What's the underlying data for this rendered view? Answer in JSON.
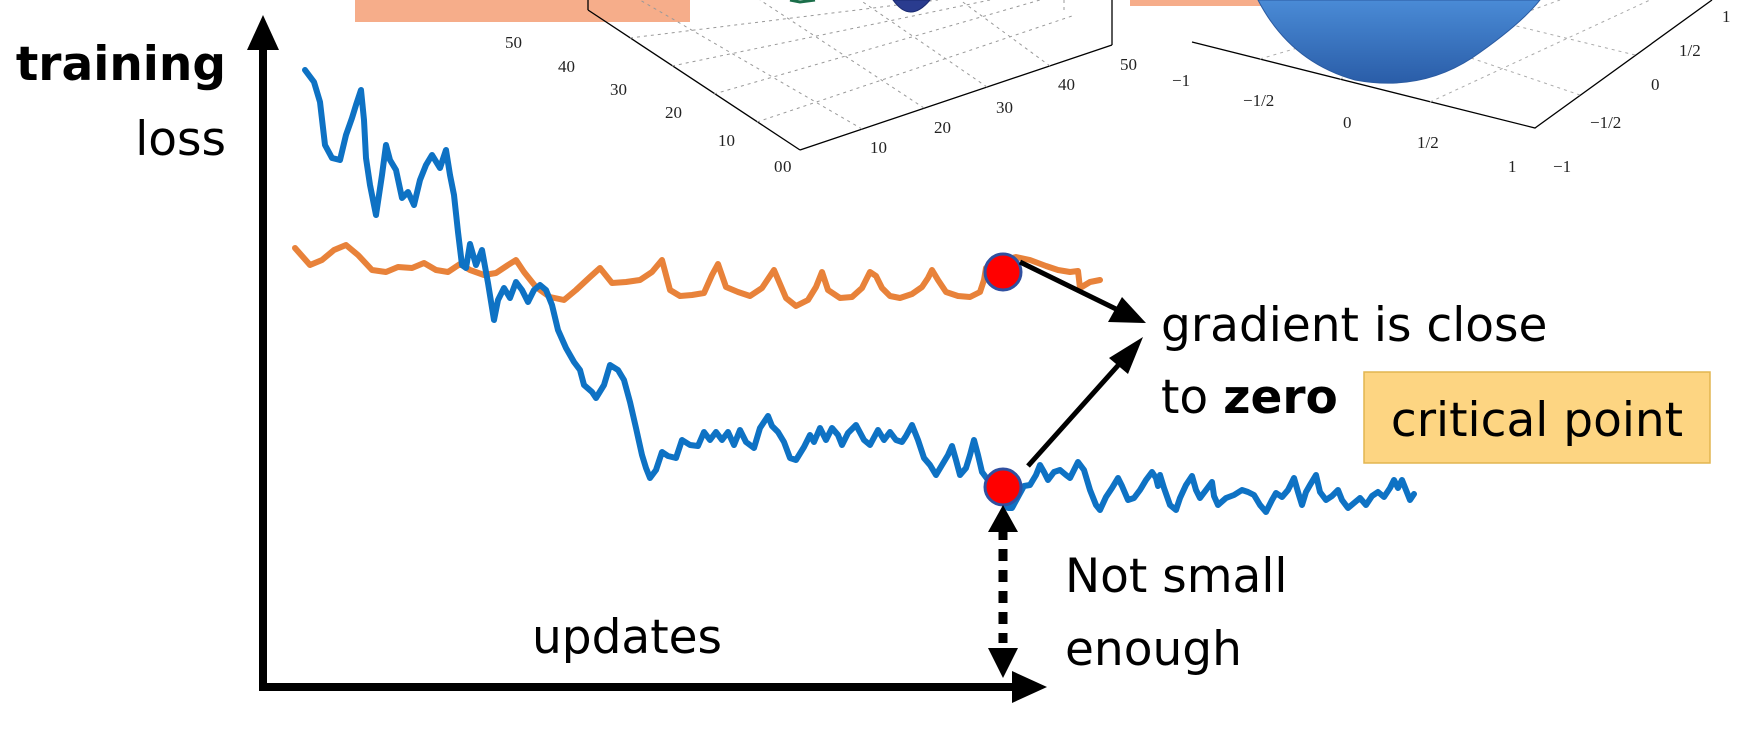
{
  "labels": {
    "y_axis_line1": "training",
    "y_axis_line2": "loss",
    "x_axis": "updates",
    "gradient_line1": "gradient is close",
    "gradient_line2_prefix": "to ",
    "gradient_line2_bold": "zero",
    "critical_point": "critical point",
    "not_small_line1": "Not small",
    "not_small_line2": "enough"
  },
  "left_surface_plot": {
    "front_axis_ticks": [
      "0",
      "10",
      "20",
      "30",
      "40",
      "50"
    ],
    "back_axis_ticks": [
      "0",
      "10",
      "20",
      "30",
      "40",
      "50"
    ]
  },
  "right_surface_plot": {
    "front_axis_ticks": [
      "−1",
      "−1/2",
      "0",
      "1/2",
      "1"
    ],
    "side_axis_ticks": [
      "−1",
      "−1/2",
      "0",
      "1/2",
      "1"
    ]
  },
  "colors": {
    "blue_curve": "#0e72c4",
    "orange_curve": "#e8823a",
    "critical_marker": "#ff0000",
    "critical_box": "#fdd582",
    "top_box": "#f6ad8a"
  }
}
